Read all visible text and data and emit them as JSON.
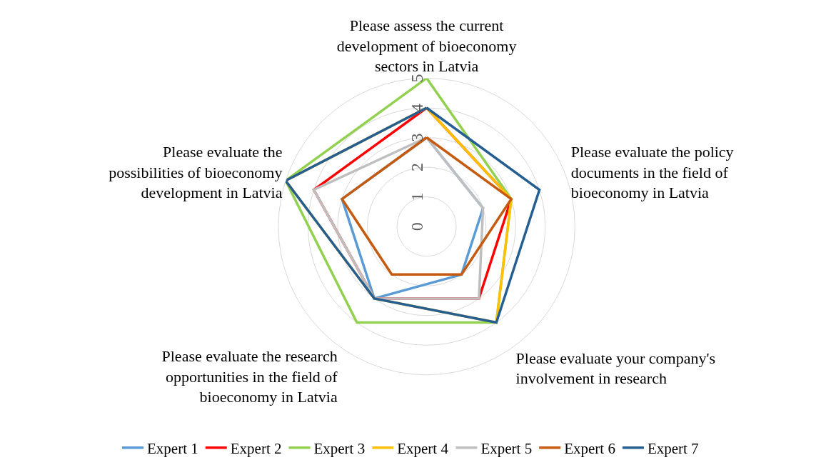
{
  "chart_data": {
    "type": "radar",
    "categories": [
      "Please assess the current development of bioeconomy sectors in Latvia",
      "Please evaluate the policy documents in the field of bioeconomy in Latvia",
      "Please evaluate your company's involvement in research",
      "Please evaluate the research opportunities in the field of bioeconomy in Latvia",
      "Please evaluate the possibilities of bioeconomy development in Latvia"
    ],
    "series": [
      {
        "name": "Expert 1",
        "color": "#5b9bd5",
        "values": [
          3,
          2,
          2,
          3,
          3
        ]
      },
      {
        "name": "Expert 2",
        "color": "#ff0000",
        "values": [
          4,
          3,
          3,
          3,
          4
        ]
      },
      {
        "name": "Expert 3",
        "color": "#92d050",
        "values": [
          5,
          3,
          4,
          4,
          5
        ]
      },
      {
        "name": "Expert 4",
        "color": "#ffc000",
        "values": [
          4,
          3,
          4,
          3,
          5
        ]
      },
      {
        "name": "Expert 5",
        "color": "#bfbfbf",
        "values": [
          3,
          2,
          3,
          3,
          4
        ]
      },
      {
        "name": "Expert 6",
        "color": "#c55a11",
        "values": [
          3,
          3,
          2,
          2,
          3
        ]
      },
      {
        "name": "Expert 7",
        "color": "#255e91",
        "values": [
          4,
          4,
          4,
          3,
          5
        ]
      }
    ],
    "ylim": [
      0,
      5
    ],
    "yticks": [
      0,
      1,
      2,
      3,
      4,
      5
    ],
    "grid": true,
    "legend": "bottom",
    "marker": "none",
    "line_style": "solid"
  }
}
